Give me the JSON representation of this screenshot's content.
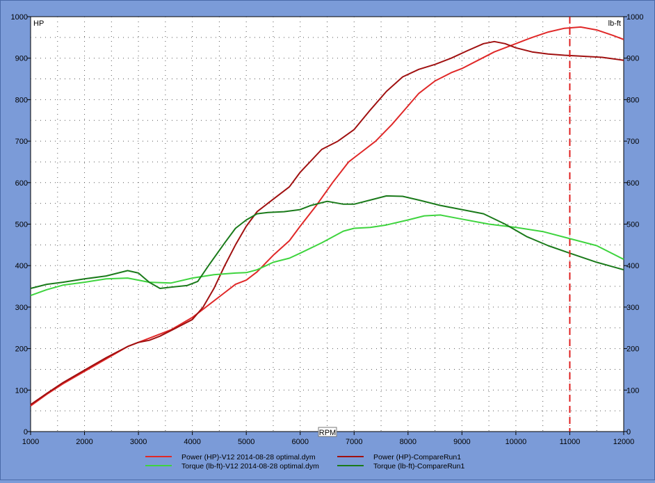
{
  "chart_data": {
    "type": "line",
    "xlabel": "RPM",
    "left_axis_label": "HP",
    "right_axis_label": "lb-ft",
    "xlim": [
      1000,
      12000
    ],
    "ylim": [
      0,
      1000
    ],
    "x_ticks": [
      1000,
      2000,
      3000,
      4000,
      5000,
      6000,
      7000,
      8000,
      9000,
      10000,
      11000,
      12000
    ],
    "y_ticks": [
      0,
      100,
      200,
      300,
      400,
      500,
      600,
      700,
      800,
      900,
      1000
    ],
    "grid": true,
    "legend_position": "bottom",
    "cursor_x": 11000,
    "cursor_color": "#e02020",
    "background": "#ffffff",
    "series": [
      {
        "name": "Power (HP)-V12 2014-08-28 optimal.dym",
        "color": "#e02828",
        "x": [
          1000,
          1300,
          1600,
          2000,
          2400,
          2800,
          3200,
          3600,
          4000,
          4300,
          4600,
          4800,
          5000,
          5200,
          5500,
          5800,
          6000,
          6300,
          6600,
          6900,
          7100,
          7400,
          7700,
          8000,
          8200,
          8500,
          8800,
          9000,
          9300,
          9600,
          10000,
          10300,
          10600,
          10900,
          11200,
          11500,
          11800,
          12000
        ],
        "y": [
          62,
          90,
          115,
          145,
          175,
          205,
          225,
          245,
          275,
          305,
          335,
          355,
          365,
          385,
          425,
          460,
          495,
          545,
          600,
          650,
          670,
          700,
          740,
          785,
          815,
          845,
          865,
          875,
          895,
          915,
          935,
          950,
          963,
          972,
          975,
          968,
          955,
          945
        ]
      },
      {
        "name": "Power (HP)-CompareRun1",
        "color": "#a01010",
        "x": [
          1000,
          1300,
          1600,
          2000,
          2400,
          2800,
          3000,
          3200,
          3400,
          3700,
          4000,
          4200,
          4400,
          4600,
          4800,
          5000,
          5200,
          5400,
          5800,
          6000,
          6400,
          6700,
          7000,
          7300,
          7600,
          7900,
          8200,
          8500,
          8800,
          9100,
          9400,
          9600,
          9800,
          10000,
          10300,
          10600,
          10900,
          11200,
          11600,
          12000
        ],
        "y": [
          65,
          92,
          118,
          148,
          178,
          205,
          215,
          220,
          230,
          250,
          270,
          300,
          345,
          400,
          450,
          495,
          530,
          550,
          590,
          625,
          680,
          700,
          728,
          775,
          820,
          855,
          873,
          885,
          900,
          918,
          935,
          940,
          935,
          925,
          915,
          910,
          907,
          905,
          902,
          895
        ]
      },
      {
        "name": "Torque (lb-ft)-V12 2014-08-28 optimal.dym",
        "color": "#3ed43e",
        "x": [
          1000,
          1300,
          1600,
          2000,
          2400,
          2800,
          3200,
          3600,
          4000,
          4400,
          4800,
          5000,
          5200,
          5500,
          5800,
          6000,
          6400,
          6800,
          7000,
          7300,
          7600,
          8000,
          8300,
          8600,
          9000,
          9500,
          10000,
          10500,
          11000,
          11500,
          12000
        ],
        "y": [
          328,
          342,
          353,
          360,
          368,
          370,
          360,
          358,
          370,
          378,
          382,
          383,
          390,
          408,
          418,
          430,
          455,
          483,
          490,
          492,
          498,
          510,
          520,
          522,
          512,
          500,
          492,
          482,
          465,
          448,
          415
        ]
      },
      {
        "name": "Torque (lb-ft)-CompareRun1",
        "color": "#1a7a1a",
        "x": [
          1000,
          1300,
          1600,
          2000,
          2400,
          2800,
          3000,
          3200,
          3400,
          3600,
          3900,
          4100,
          4300,
          4600,
          4800,
          5000,
          5200,
          5400,
          5700,
          6000,
          6200,
          6500,
          6800,
          7000,
          7300,
          7600,
          7900,
          8200,
          8600,
          9000,
          9400,
          9800,
          10200,
          10600,
          11000,
          11500,
          12000
        ],
        "y": [
          345,
          355,
          360,
          368,
          375,
          388,
          382,
          360,
          345,
          348,
          352,
          362,
          400,
          455,
          490,
          510,
          525,
          528,
          530,
          535,
          545,
          555,
          548,
          548,
          558,
          568,
          567,
          558,
          545,
          535,
          525,
          500,
          470,
          448,
          430,
          408,
          390
        ]
      }
    ]
  }
}
